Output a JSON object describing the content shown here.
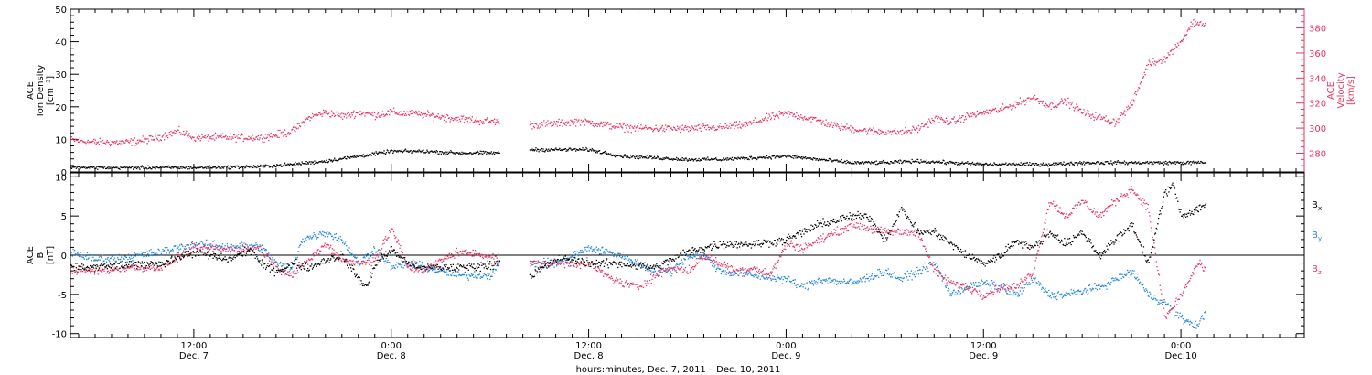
{
  "colors": {
    "black": "#000000",
    "pink": "#e8335f",
    "blue": "#1e86e0"
  },
  "xaxis": {
    "title": "hours:minutes, Dec. 7, 2011 – Dec. 10, 2011",
    "ticks": [
      {
        "t": 12,
        "top": "12:00",
        "bottom": "Dec. 7"
      },
      {
        "t": 24,
        "top": "0:00",
        "bottom": "Dec. 8"
      },
      {
        "t": 36,
        "top": "12:00",
        "bottom": "Dec. 8"
      },
      {
        "t": 48,
        "top": "0:00",
        "bottom": "Dec. 9"
      },
      {
        "t": 60,
        "top": "12:00",
        "bottom": "Dec. 9"
      },
      {
        "t": 72,
        "top": "0:00",
        "bottom": "Dec.10"
      }
    ]
  },
  "chart_data": [
    {
      "type": "scatter",
      "xlabel": "hours:minutes, Dec. 7, 2011 – Dec. 10, 2011",
      "xlim_hours_from_dec6_0000": [
        4.5,
        79.5
      ],
      "ylabel_left": [
        "ACE",
        "Ion Density",
        "[cm⁻³]"
      ],
      "ylim_left": [
        0,
        50
      ],
      "yticks_left": [
        0,
        10,
        20,
        30,
        40,
        50
      ],
      "ylabel_right": [
        "ACE",
        "Velocity",
        "[km/s]"
      ],
      "ylim_right": [
        265,
        395
      ],
      "yticks_right": [
        280,
        300,
        320,
        340,
        360,
        380
      ],
      "series": [
        {
          "axis": "left",
          "color": "#000000",
          "points": [
            [
              4.5,
              1.5
            ],
            [
              8,
              1.5
            ],
            [
              12,
              1.5
            ],
            [
              16,
              1.8
            ],
            [
              18,
              2.5
            ],
            [
              20,
              3.5
            ],
            [
              22,
              5
            ],
            [
              24,
              6.5
            ],
            [
              26,
              6.5
            ],
            [
              28,
              6
            ],
            [
              30.5,
              6
            ],
            [
              32.5,
              7
            ],
            [
              34,
              7
            ],
            [
              36,
              7
            ],
            [
              38,
              5
            ],
            [
              40,
              4.5
            ],
            [
              42,
              4
            ],
            [
              44,
              4
            ],
            [
              46,
              4.5
            ],
            [
              48,
              5
            ],
            [
              50,
              4
            ],
            [
              52,
              3
            ],
            [
              54,
              3
            ],
            [
              56,
              3.5
            ],
            [
              58,
              3
            ],
            [
              60,
              2.5
            ],
            [
              62,
              2.5
            ],
            [
              64,
              2.5
            ],
            [
              66,
              3
            ],
            [
              68,
              3
            ],
            [
              70,
              3
            ],
            [
              72,
              3
            ],
            [
              73.5,
              3
            ]
          ]
        },
        {
          "axis": "right",
          "color": "#e8335f",
          "points": [
            [
              4.5,
              291
            ],
            [
              6,
              289
            ],
            [
              8,
              289
            ],
            [
              9.5,
              292
            ],
            [
              11,
              298
            ],
            [
              12,
              293
            ],
            [
              14,
              293
            ],
            [
              16,
              293
            ],
            [
              17,
              295
            ],
            [
              18,
              298
            ],
            [
              19,
              309
            ],
            [
              20,
              313
            ],
            [
              21,
              310
            ],
            [
              22,
              313
            ],
            [
              23,
              311
            ],
            [
              24,
              313
            ],
            [
              26,
              311
            ],
            [
              28,
              308
            ],
            [
              29.5,
              306
            ],
            [
              30.5,
              306
            ],
            [
              32.5,
              303
            ],
            [
              34,
              304
            ],
            [
              35.5,
              306
            ],
            [
              37,
              303
            ],
            [
              38,
              301
            ],
            [
              40,
              300
            ],
            [
              42,
              300
            ],
            [
              44,
              301
            ],
            [
              45.5,
              303
            ],
            [
              47,
              309
            ],
            [
              48,
              312
            ],
            [
              49.5,
              308
            ],
            [
              51,
              302
            ],
            [
              53,
              298
            ],
            [
              55,
              297
            ],
            [
              56,
              300
            ],
            [
              57,
              308
            ],
            [
              58,
              305
            ],
            [
              59,
              310
            ],
            [
              60,
              313
            ],
            [
              61,
              315
            ],
            [
              62,
              320
            ],
            [
              63,
              325
            ],
            [
              64,
              318
            ],
            [
              65,
              322
            ],
            [
              66,
              313
            ],
            [
              67,
              309
            ],
            [
              68,
              305
            ],
            [
              69,
              320
            ],
            [
              70,
              352
            ],
            [
              71,
              356
            ],
            [
              72,
              370
            ],
            [
              72.7,
              385
            ],
            [
              73.5,
              383
            ]
          ]
        }
      ]
    },
    {
      "type": "scatter",
      "ylabel": [
        "ACE",
        "B",
        "[nT]"
      ],
      "ylim": [
        -10.5,
        10.5
      ],
      "yticks": [
        -10,
        -5,
        0,
        5,
        10
      ],
      "reference_line": 0,
      "series": [
        {
          "name": "B",
          "sub": "x",
          "color": "#000000",
          "points": [
            [
              4.5,
              -1.5
            ],
            [
              6,
              -1.5
            ],
            [
              8,
              -1.2
            ],
            [
              10,
              -1
            ],
            [
              12,
              0.5
            ],
            [
              14,
              -0.5
            ],
            [
              15.5,
              0.8
            ],
            [
              16,
              -1
            ],
            [
              17,
              -2
            ],
            [
              18,
              -1
            ],
            [
              19,
              -1.5
            ],
            [
              20,
              -0.5
            ],
            [
              21,
              0
            ],
            [
              22,
              -3
            ],
            [
              22.5,
              -4
            ],
            [
              23,
              -1
            ],
            [
              24,
              0.8
            ],
            [
              25,
              -1
            ],
            [
              26,
              -1.5
            ],
            [
              28,
              -1.5
            ],
            [
              30,
              -1.2
            ],
            [
              30.5,
              -0.8
            ],
            [
              32.5,
              -2.5
            ],
            [
              34,
              -0.5
            ],
            [
              35,
              -0.5
            ],
            [
              36,
              -1
            ],
            [
              38,
              -1
            ],
            [
              40,
              -1.5
            ],
            [
              42,
              0.5
            ],
            [
              44,
              1.5
            ],
            [
              46,
              1.5
            ],
            [
              48,
              2
            ],
            [
              50,
              4
            ],
            [
              52,
              5
            ],
            [
              53,
              5
            ],
            [
              54,
              2
            ],
            [
              55,
              6
            ],
            [
              56,
              3
            ],
            [
              57,
              3
            ],
            [
              58,
              1.5
            ],
            [
              59,
              0
            ],
            [
              60,
              -1
            ],
            [
              61,
              0
            ],
            [
              62,
              2
            ],
            [
              63,
              1
            ],
            [
              64,
              3
            ],
            [
              65,
              1.5
            ],
            [
              66,
              3
            ],
            [
              67,
              0
            ],
            [
              68,
              2
            ],
            [
              69,
              4
            ],
            [
              70,
              -1
            ],
            [
              71,
              8
            ],
            [
              71.5,
              9
            ],
            [
              72,
              5
            ],
            [
              73.5,
              6.5
            ]
          ]
        },
        {
          "name": "B",
          "sub": "y",
          "color": "#1e86e0",
          "points": [
            [
              4.5,
              0.5
            ],
            [
              6,
              -0.5
            ],
            [
              8,
              -0.2
            ],
            [
              10,
              0.5
            ],
            [
              12,
              1.5
            ],
            [
              14,
              1.2
            ],
            [
              16,
              1.2
            ],
            [
              17,
              -1
            ],
            [
              18,
              -1.8
            ],
            [
              18.5,
              2
            ],
            [
              20,
              3
            ],
            [
              21,
              2
            ],
            [
              22,
              -1
            ],
            [
              23,
              1
            ],
            [
              24,
              -1.5
            ],
            [
              25,
              -1
            ],
            [
              26,
              -1.5
            ],
            [
              28,
              -2.5
            ],
            [
              30,
              -2.5
            ],
            [
              30.5,
              -1
            ],
            [
              32.5,
              -1
            ],
            [
              34,
              -1
            ],
            [
              36,
              1
            ],
            [
              38,
              0
            ],
            [
              39,
              -1
            ],
            [
              40,
              -2
            ],
            [
              41,
              -2
            ],
            [
              42,
              0
            ],
            [
              43,
              0
            ],
            [
              44,
              -2
            ],
            [
              46,
              -2.5
            ],
            [
              48,
              -3
            ],
            [
              49,
              -4
            ],
            [
              50,
              -3
            ],
            [
              52,
              -3.5
            ],
            [
              54,
              -2
            ],
            [
              55,
              -3
            ],
            [
              56,
              -2
            ],
            [
              57,
              -1
            ],
            [
              58,
              -5
            ],
            [
              59,
              -4
            ],
            [
              60,
              -3.5
            ],
            [
              61,
              -4
            ],
            [
              62,
              -5
            ],
            [
              63,
              -3
            ],
            [
              64,
              -5
            ],
            [
              65,
              -5
            ],
            [
              66,
              -4.5
            ],
            [
              67,
              -4
            ],
            [
              68,
              -3
            ],
            [
              69,
              -2
            ],
            [
              70,
              -5
            ],
            [
              71,
              -6
            ],
            [
              72,
              -8
            ],
            [
              73,
              -9
            ],
            [
              73.5,
              -7
            ]
          ]
        },
        {
          "name": "B",
          "sub": "z",
          "color": "#e8335f",
          "points": [
            [
              4.5,
              -1.8
            ],
            [
              6,
              -2
            ],
            [
              8,
              -1.5
            ],
            [
              10,
              -1.5
            ],
            [
              12,
              1
            ],
            [
              14,
              0.8
            ],
            [
              16,
              1
            ],
            [
              17,
              -1.5
            ],
            [
              18,
              -2.5
            ],
            [
              19,
              -0.5
            ],
            [
              20,
              1.5
            ],
            [
              21,
              -0.5
            ],
            [
              22,
              -1
            ],
            [
              23,
              -0.5
            ],
            [
              24,
              3.5
            ],
            [
              25,
              -1.5
            ],
            [
              26,
              -1.8
            ],
            [
              28,
              0.5
            ],
            [
              30,
              0
            ],
            [
              30.5,
              -0.5
            ],
            [
              32.5,
              -1
            ],
            [
              34,
              -1
            ],
            [
              35,
              -1
            ],
            [
              36,
              -1
            ],
            [
              37,
              -2.5
            ],
            [
              38,
              -3.5
            ],
            [
              39,
              -4
            ],
            [
              40,
              -2.5
            ],
            [
              41,
              -1.5
            ],
            [
              42,
              -2
            ],
            [
              43,
              0
            ],
            [
              44,
              -1
            ],
            [
              45,
              -2
            ],
            [
              46,
              -1.5
            ],
            [
              47,
              -2.5
            ],
            [
              48,
              1.5
            ],
            [
              49,
              1
            ],
            [
              50,
              2
            ],
            [
              52,
              4
            ],
            [
              54,
              3
            ],
            [
              56,
              3
            ],
            [
              57,
              -2
            ],
            [
              58,
              -3.5
            ],
            [
              59,
              -4
            ],
            [
              60,
              -5
            ],
            [
              61,
              -4
            ],
            [
              62,
              -4
            ],
            [
              63,
              -2
            ],
            [
              64,
              7
            ],
            [
              65,
              5
            ],
            [
              66,
              7
            ],
            [
              67,
              5
            ],
            [
              68,
              7
            ],
            [
              69,
              8.5
            ],
            [
              70,
              6
            ],
            [
              71,
              -8
            ],
            [
              72,
              -5
            ],
            [
              73,
              -1
            ],
            [
              73.5,
              -2
            ]
          ]
        }
      ]
    }
  ]
}
